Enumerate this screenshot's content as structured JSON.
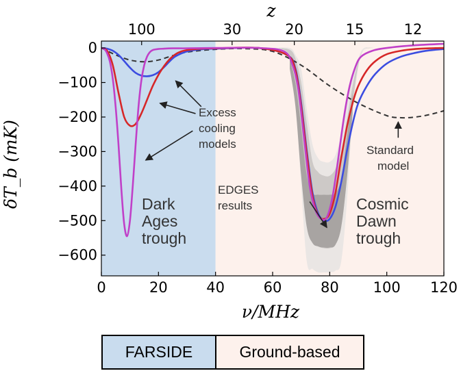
{
  "chart_data": {
    "type": "line",
    "xlabel": "ν/MHz",
    "ylabel": "δT_b (mK)",
    "top_axis_label": "z",
    "xlim": [
      0,
      120
    ],
    "ylim": [
      -660,
      20
    ],
    "x_ticks": [
      0,
      20,
      40,
      60,
      80,
      100,
      120
    ],
    "y_ticks": [
      0,
      -100,
      -200,
      -300,
      -400,
      -500,
      -600
    ],
    "z_ticks": [
      {
        "label": "100",
        "nu": 14.1
      },
      {
        "label": "30",
        "nu": 45.8
      },
      {
        "label": "20",
        "nu": 67.6
      },
      {
        "label": "15",
        "nu": 88.8
      },
      {
        "label": "12",
        "nu": 109.2
      }
    ],
    "regions": [
      {
        "label": "FARSIDE",
        "x": [
          0,
          40
        ],
        "color": "#c9dcee"
      },
      {
        "label": "Ground-based",
        "x": [
          40,
          120
        ],
        "color": "#fdf1ec"
      }
    ],
    "series": [
      {
        "style": "dashed",
        "color": "#333333",
        "x": [
          0,
          5,
          10,
          15,
          20,
          25,
          30,
          40,
          50,
          60,
          70,
          80,
          90,
          100,
          105,
          110,
          115,
          120
        ],
        "y": [
          0,
          -20,
          -35,
          -40,
          -35,
          -22,
          -12,
          -4,
          -2,
          -10,
          -50,
          -110,
          -160,
          -196,
          -202,
          -200,
          -193,
          -182
        ]
      },
      {
        "style": "solid",
        "color": "#3b4ce0",
        "x": [
          0,
          2,
          4,
          6,
          8,
          10,
          12,
          14,
          16,
          18,
          20,
          22,
          24,
          26,
          30,
          35,
          40,
          55,
          65,
          68,
          70,
          72,
          74,
          76,
          78,
          80,
          82,
          84,
          86,
          88,
          90,
          93,
          96,
          100,
          105,
          110,
          115,
          120
        ],
        "y": [
          0,
          -2,
          -8,
          -20,
          -38,
          -57,
          -72,
          -80,
          -82,
          -79,
          -70,
          -55,
          -38,
          -24,
          -10,
          -4,
          -2,
          0,
          -20,
          -60,
          -160,
          -300,
          -420,
          -480,
          -500,
          -495,
          -460,
          -390,
          -300,
          -220,
          -160,
          -110,
          -75,
          -45,
          -25,
          -14,
          -7,
          -3
        ]
      },
      {
        "style": "solid",
        "color": "#d62728",
        "x": [
          0,
          2,
          4,
          6,
          8,
          10,
          12,
          14,
          16,
          18,
          20,
          22,
          24,
          26,
          28,
          30,
          35,
          40,
          55,
          65,
          68,
          70,
          72,
          74,
          76,
          78,
          80,
          82,
          84,
          86,
          88,
          90,
          93,
          96,
          100,
          105,
          110,
          115,
          120
        ],
        "y": [
          0,
          -8,
          -50,
          -130,
          -200,
          -225,
          -220,
          -190,
          -150,
          -110,
          -78,
          -52,
          -32,
          -18,
          -10,
          -6,
          -2,
          -1,
          0,
          -20,
          -65,
          -170,
          -310,
          -430,
          -485,
          -495,
          -480,
          -420,
          -320,
          -230,
          -160,
          -110,
          -65,
          -38,
          -18,
          -8,
          -3,
          -1,
          0
        ]
      },
      {
        "style": "solid",
        "color": "#c040c8",
        "x": [
          0,
          1,
          2,
          3,
          4,
          5,
          6,
          7,
          8,
          9,
          10,
          11,
          12,
          13,
          14,
          15,
          16,
          17,
          18,
          20,
          22,
          25,
          30,
          40,
          55,
          64,
          67,
          69,
          71,
          73,
          75,
          77,
          79,
          81,
          83,
          85,
          87,
          89,
          91,
          95,
          100,
          110,
          120
        ],
        "y": [
          0,
          -3,
          -15,
          -40,
          -90,
          -170,
          -280,
          -410,
          -510,
          -545,
          -500,
          -400,
          -280,
          -170,
          -95,
          -50,
          -25,
          -12,
          -6,
          -3,
          -2,
          -1,
          -1,
          0,
          0,
          -10,
          -50,
          -120,
          -260,
          -400,
          -470,
          -495,
          -490,
          -430,
          -320,
          -200,
          -110,
          -55,
          -25,
          -8,
          0,
          8,
          12
        ]
      }
    ],
    "bands": [
      {
        "color": "#eae6e4",
        "x": [
          60,
          66,
          68,
          70,
          72,
          74,
          76,
          78,
          80,
          82,
          84,
          86,
          88,
          90,
          92,
          96
        ],
        "upper": [
          0,
          0,
          -20,
          -60,
          -180,
          -280,
          -320,
          -330,
          -330,
          -310,
          -250,
          -160,
          -80,
          -30,
          0,
          0
        ],
        "lower": [
          0,
          -30,
          -150,
          -400,
          -620,
          -640,
          -650,
          -650,
          -650,
          -645,
          -620,
          -450,
          -200,
          -60,
          -5,
          0
        ]
      },
      {
        "color": "#cdc9c7",
        "x": [
          62,
          66,
          68,
          70,
          72,
          74,
          76,
          78,
          80,
          82,
          84,
          86,
          88,
          90,
          92,
          96
        ],
        "upper": [
          0,
          -5,
          -30,
          -100,
          -220,
          -330,
          -360,
          -370,
          -370,
          -350,
          -300,
          -210,
          -110,
          -40,
          -5,
          0
        ],
        "lower": [
          0,
          -20,
          -100,
          -300,
          -500,
          -560,
          -575,
          -580,
          -580,
          -570,
          -520,
          -380,
          -170,
          -50,
          -5,
          0
        ]
      },
      {
        "color": "#a8a4a2",
        "x": [
          66,
          68,
          70,
          72,
          74,
          76,
          78,
          80,
          82,
          84,
          86,
          88
        ],
        "upper": [
          -30,
          -100,
          -230,
          -370,
          -420,
          -425,
          -425,
          -425,
          -420,
          -380,
          -260,
          -130
        ],
        "lower": [
          -60,
          -170,
          -370,
          -520,
          -565,
          -575,
          -578,
          -578,
          -570,
          -520,
          -380,
          -190
        ]
      }
    ],
    "annotations": {
      "excess_cooling": [
        "Excess",
        "cooling",
        "models"
      ],
      "standard_model": [
        "Standard",
        "model"
      ],
      "edges": [
        "EDGES",
        "results"
      ],
      "dark_ages": [
        "Dark",
        "Ages",
        "trough"
      ],
      "cosmic_dawn": [
        "Cosmic",
        "Dawn",
        "trough"
      ]
    }
  },
  "bottom_labels": {
    "farside": "FARSIDE",
    "ground": "Ground-based"
  }
}
